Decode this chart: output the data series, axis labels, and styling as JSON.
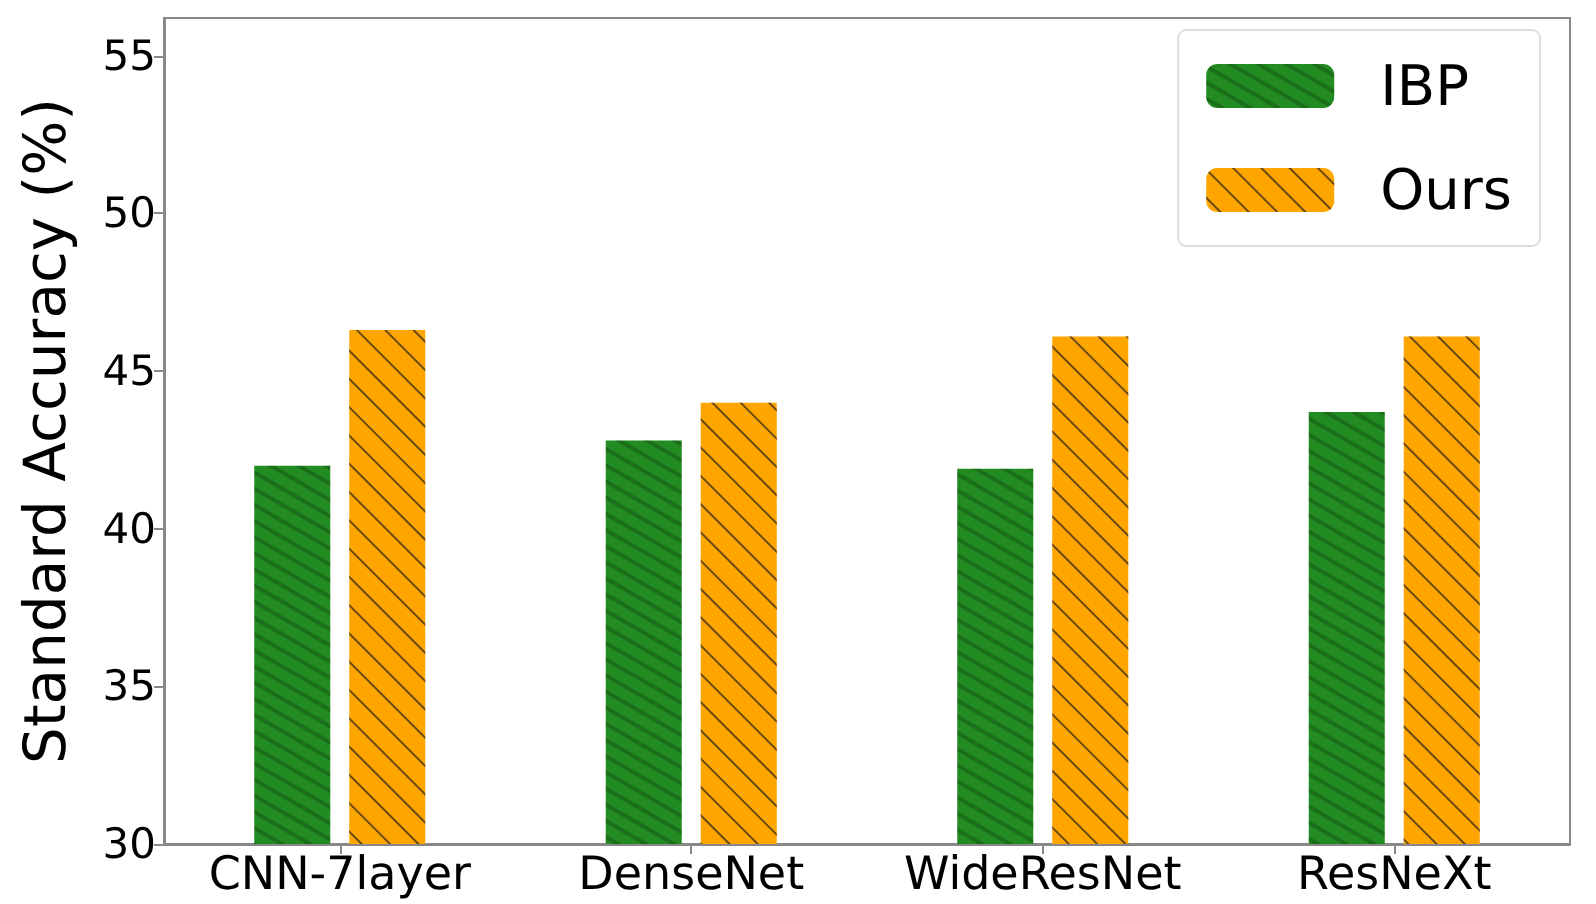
{
  "chart_data": {
    "type": "bar",
    "ylabel": "Standard Accuracy (%)",
    "categories": [
      "CNN-7layer",
      "DenseNet",
      "WideResNet",
      "ResNeXt"
    ],
    "series": [
      {
        "name": "IBP",
        "color": "#228b22",
        "values": [
          42.0,
          42.8,
          41.9,
          43.7
        ]
      },
      {
        "name": "Ours",
        "color": "#ffa500",
        "values": [
          46.3,
          44.0,
          46.1,
          46.1
        ]
      }
    ],
    "ylim": [
      30,
      56.2
    ],
    "yticks": [
      30,
      35,
      40,
      45,
      50,
      55
    ],
    "grid": false,
    "legend": "top right"
  }
}
